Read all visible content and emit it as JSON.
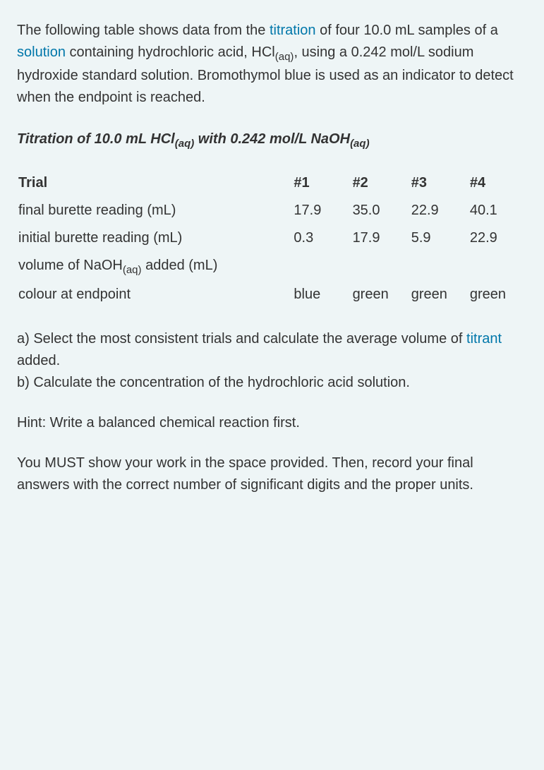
{
  "intro": {
    "part1": "The following table shows data from the ",
    "link1": "titration",
    "part2": " of four 10.0 mL samples of a ",
    "link2": "solution",
    "part3": " containing hydrochloric acid, HCl",
    "sub1": "(aq)",
    "part4": ", using a 0.242 mol/L sodium hydroxide standard solution.  Bromothymol blue is used as an indicator to detect when the endpoint is reached."
  },
  "title": {
    "part1": "Titration of 10.0 mL HCl",
    "sub1": "(aq)",
    "part2": " with 0.242 mol/L NaOH",
    "sub2": "(aq)"
  },
  "table": {
    "columns": [
      "Trial",
      "#1",
      "#2",
      "#3",
      "#4"
    ],
    "rows": [
      {
        "label": "final burette reading (mL)",
        "values": [
          "17.9",
          "35.0",
          "22.9",
          "40.1"
        ]
      },
      {
        "label_pre": "initial burette reading (mL)",
        "values": [
          "0.3",
          "17.9",
          "5.9",
          "22.9"
        ]
      },
      {
        "label_pre": "volume of NaOH",
        "label_sub": "(aq)",
        "label_post": " added (mL)",
        "values": [
          "",
          "",
          "",
          ""
        ]
      },
      {
        "label": "colour at endpoint",
        "values": [
          "blue",
          "green",
          "green",
          "green"
        ]
      }
    ]
  },
  "questions": {
    "a_pre": "a)  Select the most consistent trials and calculate the average volume of ",
    "a_link": "titrant",
    "a_post": " added.",
    "b": "b)  Calculate the concentration of the hydrochloric acid solution."
  },
  "hint": "Hint:  Write a balanced chemical reaction first.",
  "instructions": "You MUST show your work in the space provided.  Then, record your final answers with the correct number of significant digits and the proper units.",
  "colors": {
    "background": "#eef5f6",
    "text": "#333333",
    "link": "#0077aa"
  }
}
